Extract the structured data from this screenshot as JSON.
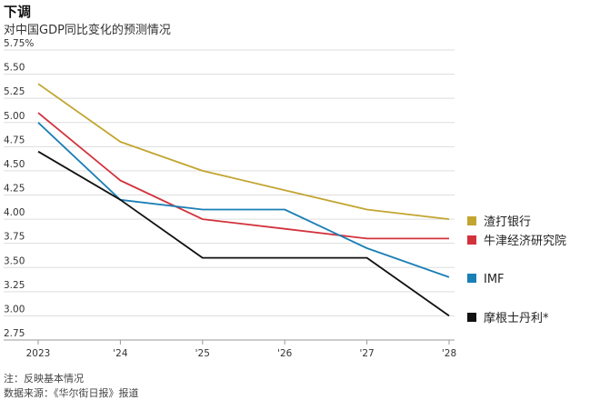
{
  "title": "下调",
  "subtitle": "对中国GDP同比变化的预测情况",
  "notes": [
    "注：反映基本情况",
    "数据来源：《华尔街日报》报道"
  ],
  "chart_data": {
    "type": "line",
    "categories": [
      "2023",
      "'24",
      "'25",
      "'26",
      "'27",
      "'28"
    ],
    "yticks": [
      "5.75%",
      "5.50",
      "5.25",
      "5.00",
      "4.75",
      "4.50",
      "4.25",
      "4.00",
      "3.75",
      "3.50",
      "3.25",
      "3.00",
      "2.75"
    ],
    "ylim": [
      2.75,
      5.75
    ],
    "grid": true,
    "legend_position": "right",
    "series": [
      {
        "name": "渣打银行",
        "color": "#c2a530",
        "values": [
          5.4,
          4.8,
          4.5,
          4.3,
          4.1,
          4.0
        ]
      },
      {
        "name": "牛津经济研究院",
        "color": "#d2323c",
        "values": [
          5.1,
          4.4,
          4.0,
          3.9,
          3.8,
          3.8
        ]
      },
      {
        "name": "IMF",
        "color": "#1a7fb5",
        "values": [
          5.0,
          4.2,
          4.1,
          4.1,
          3.7,
          3.4
        ]
      },
      {
        "name": "摩根士丹利*",
        "color": "#111111",
        "values": [
          4.7,
          4.2,
          3.6,
          3.6,
          3.6,
          3.0
        ]
      }
    ]
  }
}
